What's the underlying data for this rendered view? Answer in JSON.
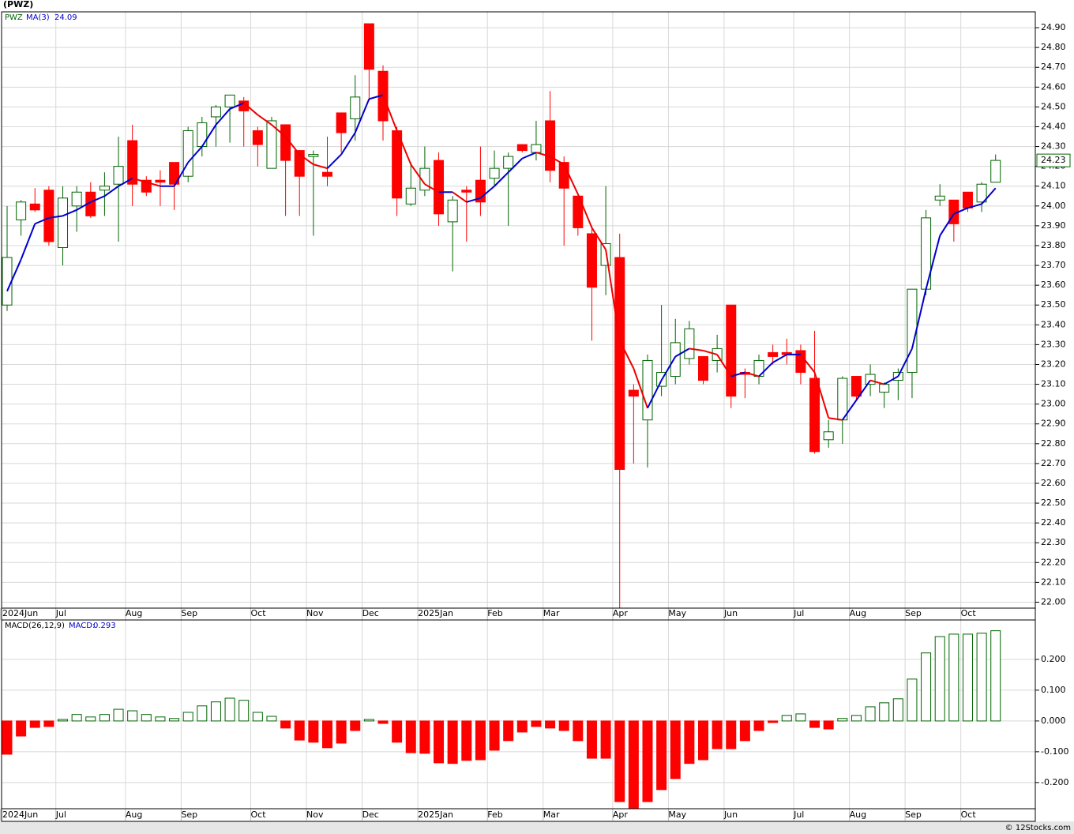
{
  "chart_data": [
    {
      "type": "candlestick",
      "title": "(PWZ)",
      "symbol": "PWZ",
      "categories": [
        "2024Jun",
        null,
        null,
        null,
        "Jul",
        null,
        null,
        null,
        null,
        "Aug",
        null,
        null,
        null,
        "Sep",
        null,
        null,
        null,
        null,
        "Oct",
        null,
        null,
        null,
        "Nov",
        null,
        null,
        null,
        "Dec",
        null,
        null,
        null,
        "2025Jan",
        null,
        null,
        null,
        null,
        "Feb",
        null,
        null,
        null,
        "Mar",
        null,
        null,
        null,
        null,
        "Apr",
        null,
        null,
        null,
        "May",
        null,
        null,
        null,
        "Jun",
        null,
        null,
        null,
        null,
        "Jul",
        null,
        null,
        null,
        "Aug",
        null,
        null,
        null,
        "Sep",
        null,
        null,
        null,
        "Oct",
        null,
        null
      ],
      "open": [
        23.5,
        23.93,
        24.01,
        24.08,
        23.79,
        24.0,
        24.07,
        24.08,
        24.11,
        24.33,
        24.13,
        24.13,
        24.22,
        24.15,
        24.3,
        24.45,
        24.5,
        24.53,
        24.38,
        24.19,
        24.41,
        24.28,
        24.25,
        24.17,
        24.47,
        24.44,
        24.92,
        24.68,
        24.38,
        24.01,
        24.08,
        24.23,
        23.92,
        24.08,
        24.13,
        24.14,
        24.19,
        24.31,
        24.27,
        24.43,
        24.22,
        24.05,
        23.86,
        23.7,
        23.74,
        23.07,
        22.92,
        23.09,
        23.14,
        23.23,
        23.24,
        23.22,
        23.5,
        23.16,
        23.14,
        23.26,
        23.26,
        23.27,
        23.13,
        22.82,
        22.92,
        23.14,
        23.1,
        23.06,
        23.12,
        23.16,
        23.58,
        24.03,
        24.03,
        24.07,
        24.02,
        24.12
      ],
      "high": [
        24.0,
        24.03,
        24.09,
        24.1,
        24.1,
        24.1,
        24.12,
        24.17,
        24.35,
        24.41,
        24.15,
        24.18,
        24.22,
        24.4,
        24.45,
        24.51,
        24.56,
        24.55,
        24.4,
        24.45,
        24.41,
        24.28,
        24.28,
        24.35,
        24.47,
        24.66,
        24.92,
        24.71,
        24.4,
        24.22,
        24.3,
        24.27,
        24.05,
        24.1,
        24.3,
        24.28,
        24.27,
        24.31,
        24.43,
        24.58,
        24.25,
        24.05,
        23.9,
        24.1,
        23.86,
        23.1,
        23.25,
        23.5,
        23.43,
        23.42,
        23.24,
        23.35,
        23.5,
        23.18,
        23.25,
        23.3,
        23.33,
        23.3,
        23.37,
        22.92,
        23.14,
        23.14,
        23.2,
        23.11,
        23.18,
        23.58,
        23.98,
        24.11,
        24.03,
        24.07,
        24.12,
        24.26
      ],
      "low": [
        23.47,
        23.85,
        23.97,
        23.8,
        23.7,
        23.87,
        23.94,
        23.95,
        23.82,
        24.0,
        24.05,
        24.0,
        23.98,
        24.12,
        24.25,
        24.3,
        24.32,
        24.3,
        24.2,
        24.19,
        23.95,
        23.95,
        23.85,
        24.1,
        24.27,
        24.33,
        24.53,
        24.33,
        23.95,
        24.0,
        24.05,
        23.9,
        23.67,
        23.82,
        23.95,
        24.1,
        23.9,
        24.27,
        24.23,
        24.12,
        23.8,
        23.85,
        23.32,
        23.55,
        21.95,
        22.7,
        22.68,
        23.04,
        23.1,
        23.2,
        23.1,
        23.16,
        22.98,
        23.03,
        23.1,
        23.2,
        23.2,
        23.1,
        22.75,
        22.78,
        22.8,
        23.02,
        23.04,
        22.98,
        23.02,
        23.03,
        23.55,
        24.0,
        23.82,
        23.97,
        23.97,
        24.12
      ],
      "close": [
        23.74,
        24.02,
        23.98,
        23.82,
        24.04,
        24.07,
        23.95,
        24.1,
        24.2,
        24.11,
        24.07,
        24.12,
        24.11,
        24.38,
        24.42,
        24.5,
        24.56,
        24.48,
        24.31,
        24.43,
        24.23,
        24.15,
        24.26,
        24.15,
        24.37,
        24.55,
        24.69,
        24.43,
        24.04,
        24.09,
        24.19,
        23.96,
        24.03,
        24.07,
        24.02,
        24.19,
        24.25,
        24.28,
        24.31,
        24.18,
        24.09,
        23.89,
        23.59,
        23.81,
        22.67,
        23.04,
        23.22,
        23.16,
        23.31,
        23.38,
        23.12,
        23.28,
        23.04,
        23.15,
        23.22,
        23.24,
        23.25,
        23.16,
        22.76,
        22.86,
        23.13,
        23.04,
        23.15,
        23.1,
        23.16,
        23.58,
        23.94,
        24.05,
        23.91,
        23.99,
        24.11,
        24.23
      ],
      "up_color": "#006400",
      "down_color": "#ff0000",
      "ma": {
        "name": "MA(3)",
        "rising_color": "#0000cc",
        "falling_color": "#ee0000",
        "values": [
          23.57,
          23.73,
          23.91,
          23.94,
          23.95,
          23.98,
          24.02,
          24.05,
          24.1,
          24.14,
          24.12,
          24.1,
          24.1,
          24.22,
          24.3,
          24.41,
          24.49,
          24.52,
          24.46,
          24.41,
          24.35,
          24.26,
          24.21,
          24.19,
          24.26,
          24.37,
          24.54,
          24.56,
          24.38,
          24.21,
          24.11,
          24.07,
          24.07,
          24.02,
          24.04,
          24.1,
          24.17,
          24.24,
          24.27,
          24.25,
          24.21,
          24.06,
          23.89,
          23.78,
          23.32,
          23.18,
          22.98,
          23.12,
          23.24,
          23.28,
          23.27,
          23.25,
          23.14,
          23.16,
          23.14,
          23.21,
          23.25,
          23.25,
          23.16,
          22.93,
          22.92,
          23.02,
          23.12,
          23.1,
          23.14,
          23.28,
          23.58,
          23.85,
          23.96,
          23.99,
          24.01,
          24.09
        ]
      },
      "ylim": [
        21.97,
        24.98
      ],
      "grid": true,
      "yticks": [
        {
          "value": 22.0,
          "label": "22.00"
        },
        {
          "value": 22.1,
          "label": "22.10"
        },
        {
          "value": 22.2,
          "label": "22.20"
        },
        {
          "value": 22.3,
          "label": "22.30"
        },
        {
          "value": 22.4,
          "label": "22.40"
        },
        {
          "value": 22.5,
          "label": "22.50"
        },
        {
          "value": 22.6,
          "label": "22.60"
        },
        {
          "value": 22.7,
          "label": "22.70"
        },
        {
          "value": 22.8,
          "label": "22.80"
        },
        {
          "value": 22.9,
          "label": "22.90"
        },
        {
          "value": 23.0,
          "label": "23.00"
        },
        {
          "value": 23.1,
          "label": "23.10"
        },
        {
          "value": 23.2,
          "label": "23.20"
        },
        {
          "value": 23.3,
          "label": "23.30"
        },
        {
          "value": 23.4,
          "label": "23.40"
        },
        {
          "value": 23.5,
          "label": "23.50"
        },
        {
          "value": 23.6,
          "label": "23.60"
        },
        {
          "value": 23.7,
          "label": "23.70"
        },
        {
          "value": 23.8,
          "label": "23.80"
        },
        {
          "value": 23.9,
          "label": "23.90"
        },
        {
          "value": 24.0,
          "label": "24.00"
        },
        {
          "value": 24.1,
          "label": "24.10"
        },
        {
          "value": 24.2,
          "label": "24.20"
        },
        {
          "value": 24.3,
          "label": "24.30"
        },
        {
          "value": 24.4,
          "label": "24.40"
        },
        {
          "value": 24.5,
          "label": "24.50"
        },
        {
          "value": 24.6,
          "label": "24.60"
        },
        {
          "value": 24.7,
          "label": "24.70"
        },
        {
          "value": 24.8,
          "label": "24.80"
        },
        {
          "value": 24.9,
          "label": "24.90"
        }
      ]
    },
    {
      "type": "bar",
      "name": "MACD(26,12,9)",
      "value_prefix": "MACD:",
      "positive_color": "#006400",
      "negative_color": "#ff0000",
      "values": [
        -0.108,
        -0.049,
        -0.021,
        -0.018,
        0.005,
        0.021,
        0.013,
        0.021,
        0.038,
        0.033,
        0.021,
        0.013,
        0.008,
        0.028,
        0.049,
        0.062,
        0.074,
        0.067,
        0.028,
        0.015,
        -0.023,
        -0.062,
        -0.069,
        -0.087,
        -0.072,
        -0.031,
        0.005,
        -0.008,
        -0.069,
        -0.103,
        -0.105,
        -0.136,
        -0.138,
        -0.128,
        -0.126,
        -0.095,
        -0.064,
        -0.036,
        -0.018,
        -0.023,
        -0.031,
        -0.064,
        -0.121,
        -0.121,
        -0.262,
        -0.287,
        -0.262,
        -0.223,
        -0.187,
        -0.138,
        -0.126,
        -0.09,
        -0.09,
        -0.064,
        -0.031,
        -0.005,
        0.018,
        0.023,
        -0.021,
        -0.026,
        0.008,
        0.018,
        0.046,
        0.059,
        0.072,
        0.136,
        0.221,
        0.274,
        0.282,
        0.282,
        0.285,
        0.293
      ],
      "ylim": [
        -0.285,
        0.328
      ],
      "grid": true,
      "yticks": [
        {
          "value": -0.2,
          "label": "-0.200"
        },
        {
          "value": -0.1,
          "label": "-0.100"
        },
        {
          "value": 0,
          "label": "0.000"
        },
        {
          "value": 0.1,
          "label": "0.100"
        },
        {
          "value": 0.2,
          "label": "0.200"
        }
      ]
    }
  ],
  "footer": "© 12Stocks.com"
}
